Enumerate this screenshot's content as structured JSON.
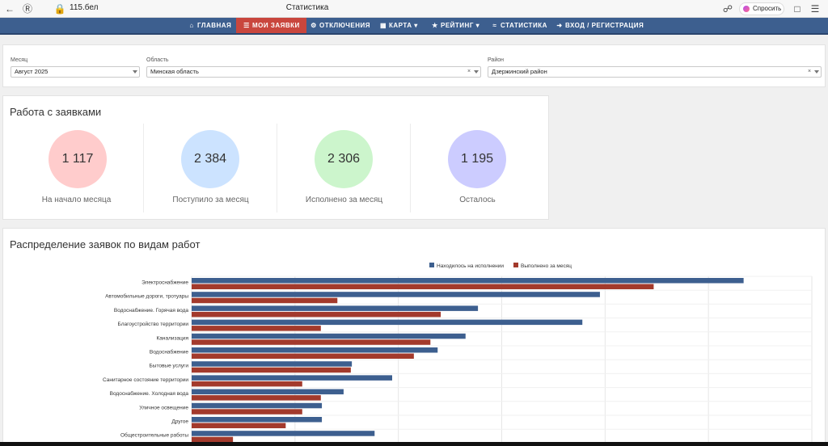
{
  "browser": {
    "url": "115.бел",
    "title": "Статистика",
    "ask_label": "Спросить"
  },
  "nav": {
    "items": [
      {
        "label": "ГЛАВНАЯ",
        "icon": "home-icon"
      },
      {
        "label": "МОИ ЗАЯВКИ",
        "icon": "list-icon"
      },
      {
        "label": "ОТКЛЮЧЕНИЯ",
        "icon": "outage-icon"
      },
      {
        "label": "КАРТА ▾",
        "icon": "map-icon"
      },
      {
        "label": "РЕЙТИНГ ▾",
        "icon": "star-icon"
      },
      {
        "label": "СТАТИСТИКА",
        "icon": "chart-icon"
      },
      {
        "label": "ВХОД / РЕГИСТРАЦИЯ",
        "icon": "login-icon"
      }
    ],
    "colors": {
      "bar": "#3d5f8f",
      "active": "#c9463d"
    }
  },
  "filters": {
    "month": {
      "label": "Месяц",
      "value": "Август 2025"
    },
    "region": {
      "label": "Область",
      "value": "Минская область"
    },
    "district": {
      "label": "Район",
      "value": "Дзержинский район"
    }
  },
  "stats": {
    "title": "Работа с заявками",
    "items": [
      {
        "value": "1 117",
        "label": "На начало месяца",
        "color": "#ffcccc"
      },
      {
        "value": "2 384",
        "label": "Поступило за месяц",
        "color": "#cce3ff"
      },
      {
        "value": "2 306",
        "label": "Исполнено за месяц",
        "color": "#ccf5cc"
      },
      {
        "value": "1 195",
        "label": "Осталось",
        "color": "#ccccff"
      }
    ]
  },
  "distribution": {
    "title": "Распределение заявок по видам работ"
  },
  "chart_data": {
    "type": "bar",
    "orientation": "horizontal",
    "legend_position": "top",
    "grid": true,
    "categories": [
      "Электроснабжение",
      "Автомобильные дороги, тротуары",
      "Водоснабжение. Горячая вода",
      "Благоустройство территории",
      "Канализация",
      "Водоснабжение",
      "Бытовые услуги",
      "Санитарное состояние территории",
      "Водоснабжение. Холодная вода",
      "Уличное освещение",
      "Другое",
      "Общестроительные работы"
    ],
    "series": [
      {
        "name": "Находилось на исполнении",
        "color": "#3d5f8f",
        "values": [
          534,
          395,
          277,
          378,
          265,
          238,
          155,
          194,
          147,
          126,
          126,
          177
        ]
      },
      {
        "name": "Выполнено за месяц",
        "color": "#a33a2c",
        "values": [
          447,
          141,
          241,
          125,
          231,
          215,
          154,
          107,
          125,
          107,
          91,
          40
        ]
      }
    ],
    "xlim": [
      0,
      600
    ]
  }
}
